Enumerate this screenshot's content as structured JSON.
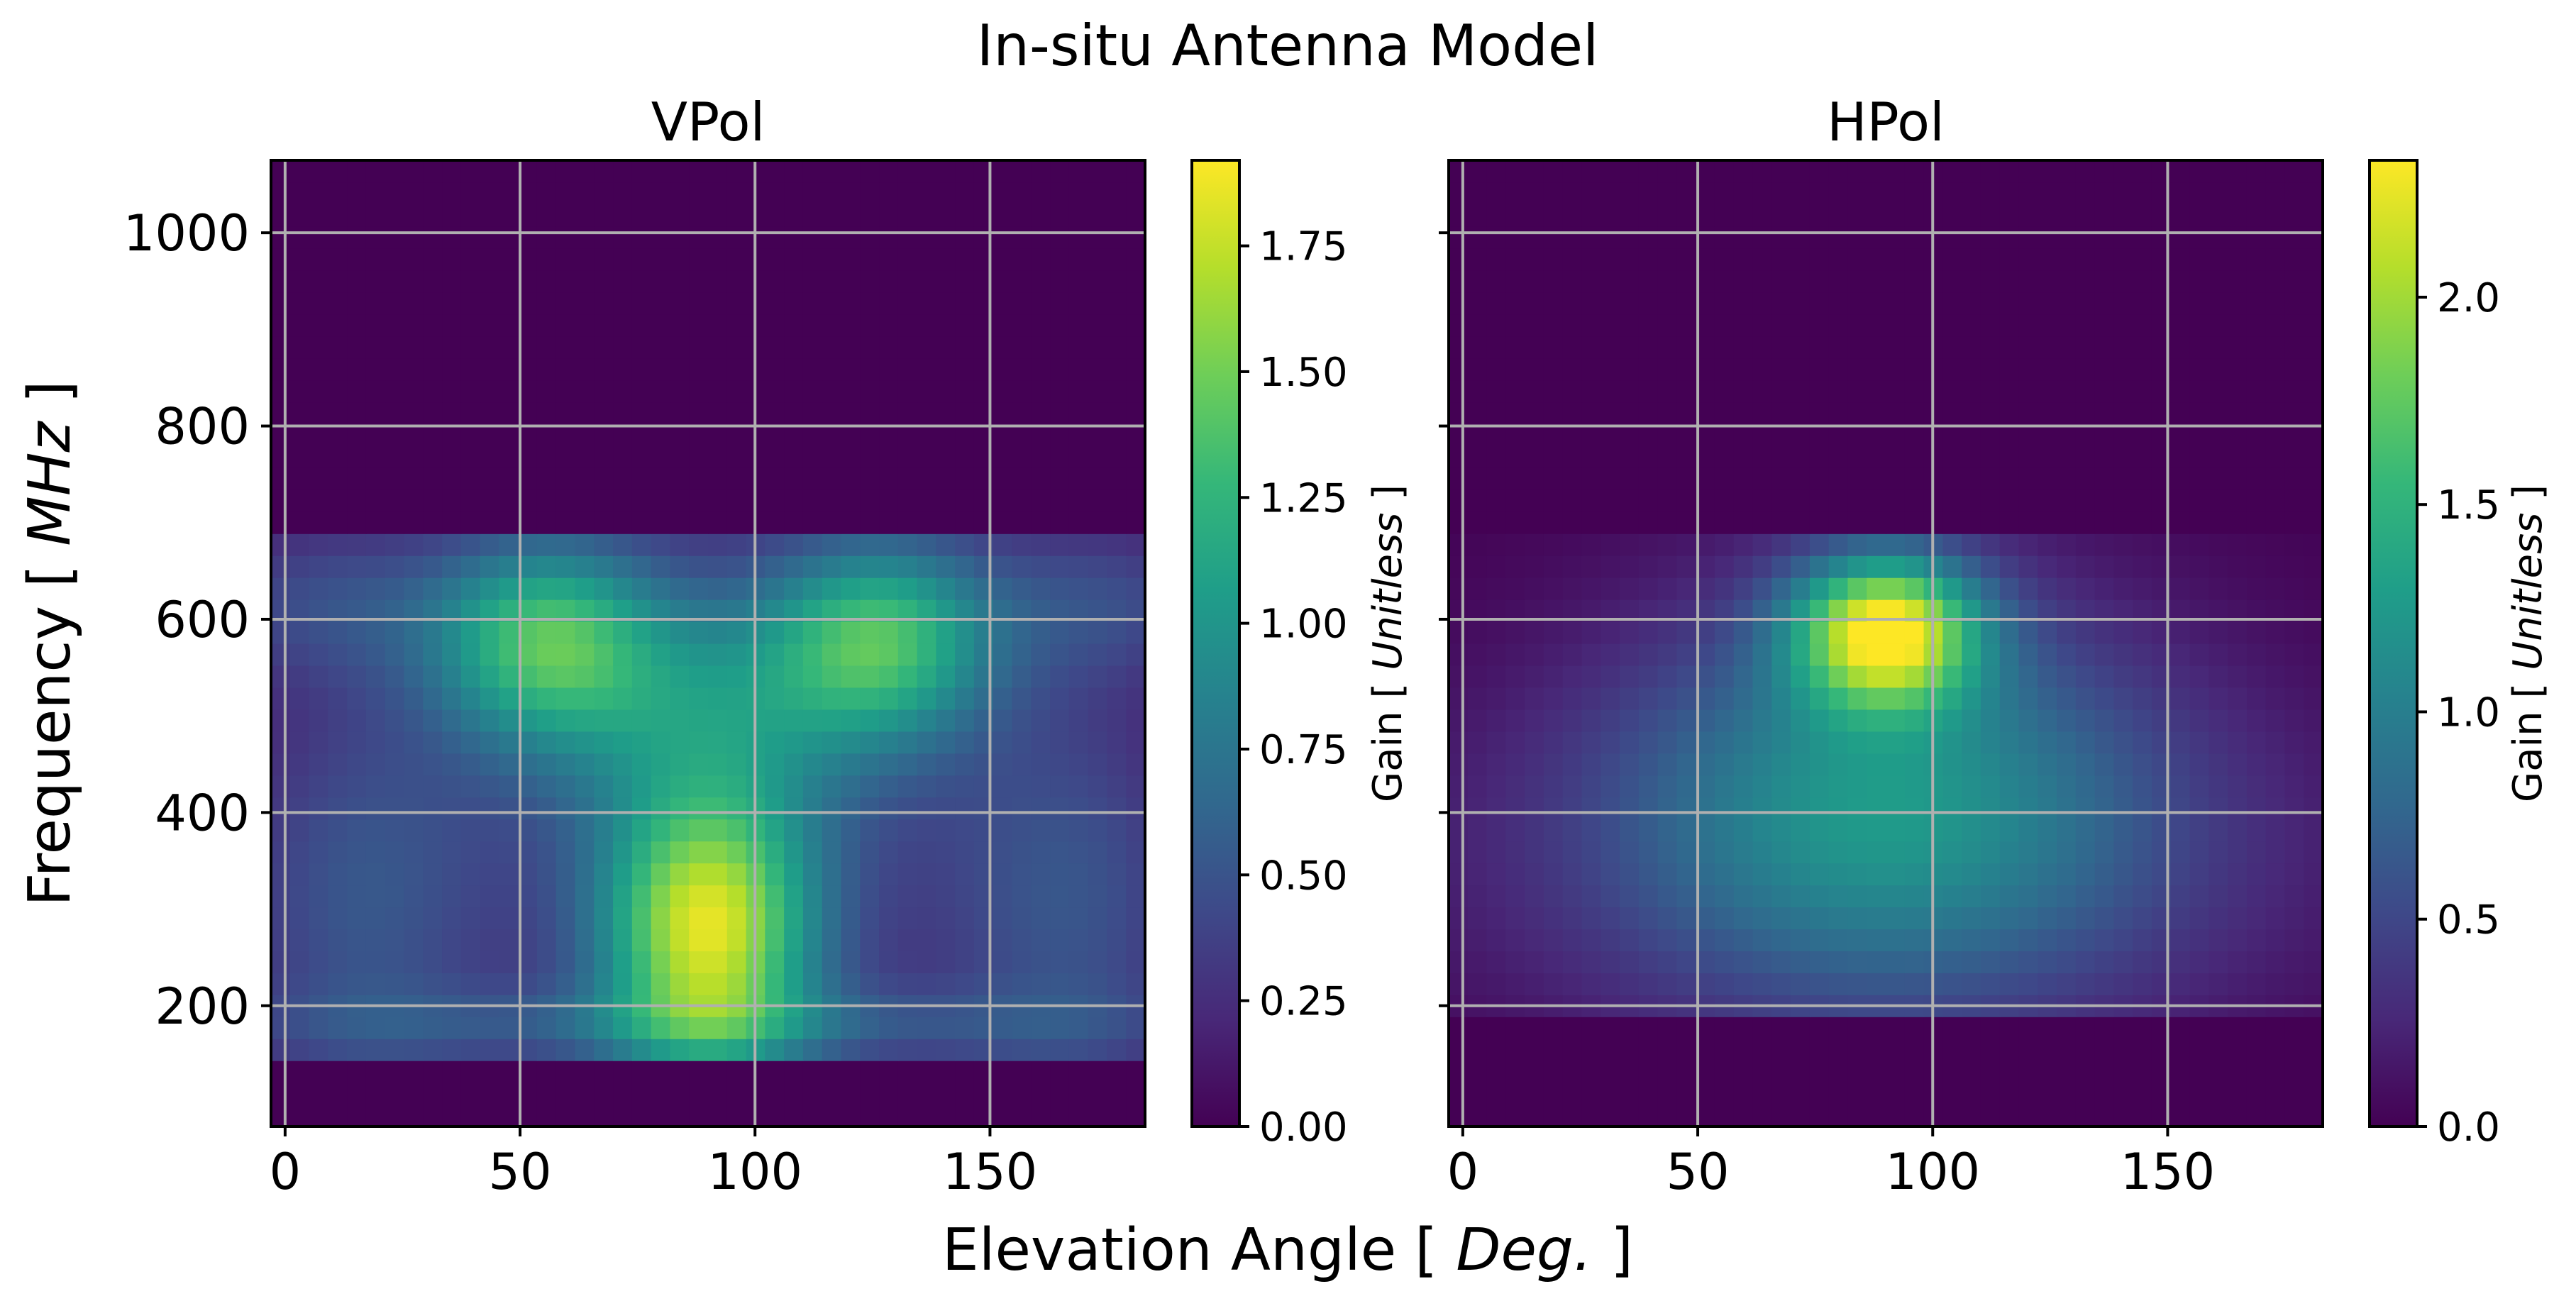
{
  "chart_data": {
    "suptitle": "In-situ Antenna Model",
    "xlabel_prefix": "Elevation Angle [ ",
    "xlabel_unit": "Deg.",
    "xlabel_suffix": " ]",
    "ylabel_prefix": "Frequency [ ",
    "ylabel_unit": "MHz",
    "ylabel_suffix": " ]",
    "cbar_label_prefix": "Gain [ ",
    "cbar_label_unit": "Unitless",
    "cbar_label_suffix": " ]",
    "colormap": [
      "#440154",
      "#482878",
      "#3e4989",
      "#31688e",
      "#26828e",
      "#1f9e89",
      "#35b779",
      "#6ece58",
      "#b5de2b",
      "#fde725"
    ],
    "xlim": [
      -3,
      183
    ],
    "ylim": [
      75,
      1075
    ],
    "xticks": [
      0,
      50,
      100,
      150
    ],
    "yticks": [
      200,
      400,
      600,
      800,
      1000
    ],
    "grid": true,
    "panels": [
      {
        "type": "heatmap",
        "title": "VPol",
        "show_ytick_labels": true,
        "zlim": [
          0,
          1.92
        ],
        "cbar_ticks": [
          "0.00",
          "0.25",
          "0.50",
          "0.75",
          "1.00",
          "1.25",
          "1.50",
          "1.75"
        ],
        "support": {
          "fmin": 140,
          "fmax": 690
        },
        "blobs": [
          {
            "x": 55,
            "y": 580,
            "sx": 17,
            "sy": 75,
            "a": 1.08
          },
          {
            "x": 127,
            "y": 580,
            "sx": 17,
            "sy": 75,
            "a": 1.08
          },
          {
            "x": 90,
            "y": 275,
            "sx": 16,
            "sy": 100,
            "a": 1.55
          },
          {
            "x": 90,
            "y": 510,
            "sx": 24,
            "sy": 90,
            "a": 0.55
          },
          {
            "x": 90,
            "y": 410,
            "sx": 55,
            "sy": 220,
            "a": 0.35
          },
          {
            "x": 15,
            "y": 300,
            "sx": 20,
            "sy": 160,
            "a": 0.4
          },
          {
            "x": 168,
            "y": 300,
            "sx": 20,
            "sy": 160,
            "a": 0.4
          },
          {
            "x": 90,
            "y": 180,
            "sx": 70,
            "sy": 30,
            "a": 0.35
          },
          {
            "x": 8,
            "y": 620,
            "sx": 20,
            "sy": 60,
            "a": 0.35
          },
          {
            "x": 175,
            "y": 620,
            "sx": 20,
            "sy": 60,
            "a": 0.35
          }
        ]
      },
      {
        "type": "heatmap",
        "title": "HPol",
        "show_ytick_labels": false,
        "zlim": [
          0,
          2.33
        ],
        "cbar_ticks": [
          "0.0",
          "0.5",
          "1.0",
          "1.5",
          "2.0"
        ],
        "support": {
          "fmin": 200,
          "fmax": 690
        },
        "blobs": [
          {
            "x": 90,
            "y": 590,
            "sx": 14,
            "sy": 55,
            "a": 1.95
          },
          {
            "x": 90,
            "y": 420,
            "sx": 40,
            "sy": 150,
            "a": 0.95
          },
          {
            "x": 90,
            "y": 350,
            "sx": 70,
            "sy": 140,
            "a": 0.35
          }
        ]
      }
    ]
  }
}
